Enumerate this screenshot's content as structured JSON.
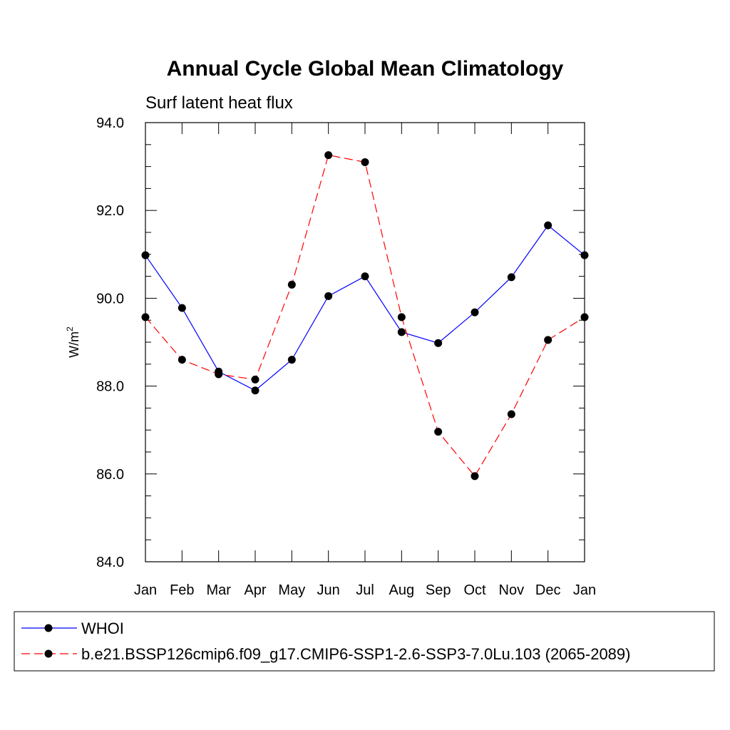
{
  "chart_data": {
    "type": "line",
    "title": "Annual Cycle Global Mean Climatology",
    "subtitle": "Surf latent heat flux",
    "ylabel": "W/m",
    "ylabel_sup": "2",
    "xlabel": "",
    "categories": [
      "Jan",
      "Feb",
      "Mar",
      "Apr",
      "May",
      "Jun",
      "Jul",
      "Aug",
      "Sep",
      "Oct",
      "Nov",
      "Dec",
      "Jan"
    ],
    "ylim": [
      84.0,
      94.0
    ],
    "yticks": [
      84.0,
      86.0,
      88.0,
      90.0,
      92.0,
      94.0
    ],
    "ytick_labels": [
      "84.0",
      "86.0",
      "88.0",
      "90.0",
      "92.0",
      "94.0"
    ],
    "grid": false,
    "legend_position": "bottom",
    "series": [
      {
        "name": "WHOI",
        "color": "#0000ff",
        "dash": "solid",
        "marker": "filled-circle",
        "values": [
          90.98,
          89.78,
          88.33,
          87.9,
          88.6,
          90.05,
          90.5,
          89.23,
          88.98,
          89.68,
          90.48,
          91.66,
          90.98
        ]
      },
      {
        "name": "b.e21.BSSP126cmip6.f09_g17.CMIP6-SSP1-2.6-SSP3-7.0Lu.103 (2065-2089)",
        "color": "#ff0000",
        "dash": "dashed",
        "marker": "filled-circle",
        "values": [
          89.57,
          88.6,
          88.27,
          88.15,
          90.31,
          93.26,
          93.1,
          89.57,
          86.96,
          85.95,
          87.36,
          89.05,
          89.57
        ]
      }
    ]
  }
}
